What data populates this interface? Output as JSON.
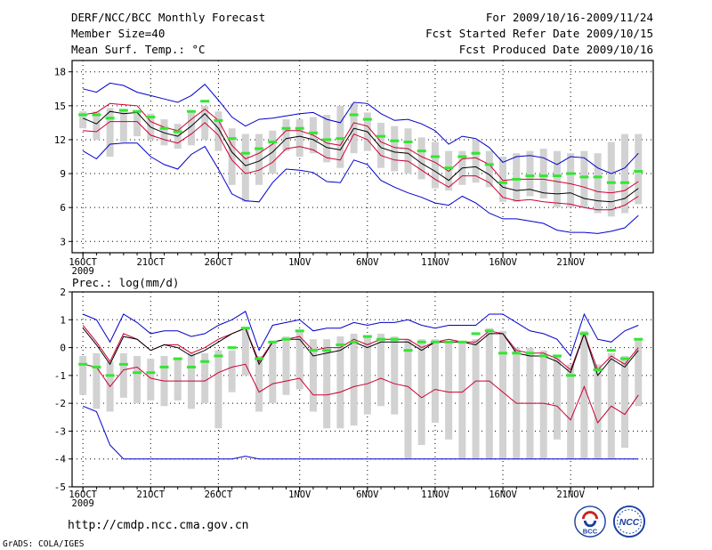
{
  "header": {
    "title": "DERF/NCC/BCC Monthly Forecast",
    "member_size": "Member Size=40",
    "variable_top": "Mean Surf. Temp.: °C",
    "period": "For 2009/10/16-2009/11/24",
    "fcst_started": "Fcst Started Refer Date 2009/10/15",
    "fcst_produced": "Fcst Produced Date 2009/10/16"
  },
  "footer": {
    "url": "http://cmdp.ncc.cma.gov.cn",
    "grads": "GrADS: COLA/IGES",
    "logo_left_text": "BCC",
    "logo_right_text": "NCC"
  },
  "colors": {
    "blue": "#0000cc",
    "red": "#cc0033",
    "black": "#000000",
    "green": "#33e633",
    "gray": "#d2d2d2"
  },
  "chart_data": [
    {
      "type": "line",
      "title": "Mean Surf. Temp.: °C",
      "x_tick_labels": [
        "16OCT",
        "21OCT",
        "26OCT",
        "1NOV",
        "6NOV",
        "11NOV",
        "16NOV",
        "21NOV"
      ],
      "x_tick_days": [
        1,
        6,
        11,
        17,
        22,
        27,
        32,
        37
      ],
      "year_label": "2009",
      "ylim": [
        2,
        19
      ],
      "yticks": [
        3,
        6,
        9,
        12,
        15,
        18
      ],
      "series": [
        {
          "name": "max",
          "color": "blue",
          "values": [
            16.5,
            16.2,
            17.0,
            16.8,
            16.2,
            15.9,
            15.6,
            15.3,
            15.9,
            16.9,
            15.5,
            14.0,
            13.2,
            13.8,
            13.9,
            14.1,
            14.3,
            14.4,
            13.8,
            13.5,
            15.3,
            15.2,
            14.3,
            13.7,
            13.8,
            13.4,
            12.8,
            11.6,
            12.3,
            12.1,
            11.3,
            10.0,
            10.5,
            10.6,
            10.4,
            9.8,
            10.5,
            10.4,
            9.5,
            9.0,
            9.5,
            10.8
          ]
        },
        {
          "name": "p75",
          "color": "red",
          "values": [
            14.2,
            14.4,
            15.2,
            15.1,
            15.0,
            13.6,
            13.1,
            12.8,
            13.8,
            14.7,
            13.7,
            11.5,
            10.3,
            10.8,
            11.6,
            12.8,
            12.8,
            12.4,
            11.7,
            11.5,
            13.5,
            13.2,
            11.8,
            11.3,
            11.2,
            10.5,
            10.0,
            9.2,
            10.3,
            10.4,
            9.8,
            8.4,
            8.5,
            8.5,
            8.5,
            8.3,
            8.1,
            7.8,
            7.4,
            7.3,
            7.5,
            8.3
          ]
        },
        {
          "name": "mean",
          "color": "black",
          "values": [
            13.9,
            13.4,
            14.5,
            14.3,
            14.4,
            13.1,
            12.6,
            12.3,
            13.2,
            14.3,
            13.0,
            10.9,
            9.7,
            10.1,
            10.9,
            12.1,
            12.3,
            12.0,
            11.3,
            11.1,
            13.0,
            12.7,
            11.3,
            10.9,
            10.8,
            9.9,
            9.2,
            8.4,
            9.5,
            9.6,
            8.9,
            7.8,
            7.5,
            7.6,
            7.3,
            7.2,
            7.3,
            6.8,
            6.6,
            6.5,
            6.8,
            7.7
          ]
        },
        {
          "name": "p25",
          "color": "red",
          "values": [
            12.8,
            12.7,
            13.6,
            13.6,
            13.6,
            12.4,
            12.0,
            11.7,
            12.5,
            13.5,
            12.4,
            10.2,
            9.0,
            9.3,
            10.0,
            11.2,
            11.4,
            11.1,
            10.4,
            10.2,
            12.5,
            12.0,
            10.6,
            10.2,
            10.1,
            9.3,
            8.5,
            7.8,
            8.8,
            8.8,
            8.2,
            6.9,
            6.6,
            6.7,
            6.5,
            6.4,
            6.3,
            6.0,
            5.8,
            5.8,
            6.2,
            7.0
          ]
        },
        {
          "name": "min",
          "color": "blue",
          "values": [
            11.0,
            10.3,
            11.6,
            11.7,
            11.7,
            10.5,
            9.8,
            9.4,
            10.7,
            11.4,
            9.4,
            7.2,
            6.6,
            6.5,
            8.2,
            9.4,
            9.3,
            9.1,
            8.3,
            8.2,
            10.2,
            9.8,
            8.4,
            7.8,
            7.3,
            6.9,
            6.4,
            6.2,
            7.0,
            6.4,
            5.5,
            5.0,
            5.0,
            4.8,
            4.6,
            4.0,
            3.8,
            3.8,
            3.7,
            3.9,
            4.2,
            5.3
          ]
        },
        {
          "name": "bar_top",
          "color": "gray",
          "values": [
            14.5,
            14.5,
            14.8,
            14.7,
            14.6,
            14.3,
            13.8,
            13.4,
            14.5,
            15.0,
            14.5,
            13.0,
            12.5,
            12.5,
            12.8,
            13.8,
            13.8,
            14.0,
            14.2,
            15.0,
            15.2,
            14.4,
            13.5,
            13.2,
            13.0,
            12.2,
            11.8,
            11.0,
            11.0,
            12.0,
            11.0,
            10.5,
            10.8,
            11.0,
            11.2,
            11.0,
            10.8,
            11.0,
            10.8,
            11.8,
            12.5,
            12.5
          ]
        },
        {
          "name": "bar_bottom",
          "color": "gray",
          "values": [
            13.0,
            12.0,
            10.5,
            11.8,
            12.3,
            12.0,
            11.5,
            11.2,
            11.5,
            12.0,
            11.0,
            8.0,
            6.5,
            8.0,
            9.0,
            11.0,
            10.5,
            10.8,
            10.0,
            9.5,
            10.8,
            11.0,
            9.5,
            9.2,
            9.0,
            8.5,
            7.7,
            7.5,
            8.0,
            8.2,
            7.8,
            6.5,
            6.5,
            7.0,
            6.8,
            6.0,
            6.0,
            6.0,
            5.5,
            5.2,
            5.5,
            6.3
          ]
        },
        {
          "name": "median",
          "color": "green",
          "values": [
            14.2,
            14.2,
            13.9,
            14.6,
            14.5,
            14.0,
            13.0,
            12.7,
            14.5,
            15.4,
            13.7,
            12.1,
            10.8,
            11.2,
            11.8,
            13.0,
            13.0,
            12.6,
            12.0,
            12.1,
            14.2,
            13.8,
            12.3,
            11.9,
            11.8,
            11.0,
            10.5,
            9.5,
            10.5,
            10.8,
            9.8,
            8.2,
            8.5,
            8.8,
            8.8,
            8.8,
            9.0,
            8.7,
            8.7,
            8.2,
            8.2,
            9.2
          ]
        }
      ]
    },
    {
      "type": "line",
      "title": "Prec.: log(mm/d)",
      "x_tick_labels": [
        "16OCT",
        "21OCT",
        "26OCT",
        "1NOV",
        "6NOV",
        "11NOV",
        "16NOV",
        "21NOV"
      ],
      "x_tick_days": [
        1,
        6,
        11,
        17,
        22,
        27,
        32,
        37
      ],
      "year_label": "2009",
      "ylim": [
        -5,
        2
      ],
      "yticks": [
        -5,
        -4,
        -3,
        -2,
        -1,
        0,
        1,
        2
      ],
      "series": [
        {
          "name": "max",
          "color": "blue",
          "values": [
            1.2,
            1.0,
            0.2,
            1.2,
            0.9,
            0.5,
            0.6,
            0.6,
            0.4,
            0.5,
            0.8,
            1.0,
            1.3,
            -0.1,
            0.8,
            0.9,
            1.0,
            0.6,
            0.7,
            0.7,
            0.9,
            0.8,
            0.9,
            0.9,
            1.0,
            0.8,
            0.7,
            0.8,
            0.8,
            0.8,
            1.2,
            1.2,
            0.9,
            0.6,
            0.5,
            0.3,
            -0.3,
            1.2,
            0.3,
            0.2,
            0.6,
            0.8
          ]
        },
        {
          "name": "p75",
          "color": "red",
          "values": [
            0.8,
            0.2,
            -0.5,
            0.5,
            0.3,
            -0.1,
            0.1,
            0.1,
            -0.2,
            0.0,
            0.3,
            0.5,
            0.7,
            -0.5,
            0.2,
            0.3,
            0.4,
            -0.1,
            0.0,
            0.0,
            0.3,
            0.1,
            0.3,
            0.3,
            0.3,
            0.0,
            0.2,
            0.3,
            0.2,
            0.2,
            0.6,
            0.5,
            -0.1,
            -0.2,
            -0.2,
            -0.4,
            -0.8,
            0.5,
            -0.8,
            -0.3,
            -0.6,
            0.0
          ]
        },
        {
          "name": "mean",
          "color": "black",
          "values": [
            0.7,
            0.1,
            -0.6,
            0.4,
            0.3,
            -0.1,
            0.1,
            0.0,
            -0.3,
            -0.1,
            0.2,
            0.5,
            0.7,
            -0.6,
            0.2,
            0.3,
            0.3,
            -0.3,
            -0.2,
            -0.1,
            0.2,
            0.0,
            0.2,
            0.2,
            0.2,
            -0.1,
            0.2,
            0.2,
            0.2,
            0.1,
            0.5,
            0.5,
            -0.2,
            -0.3,
            -0.3,
            -0.5,
            -0.9,
            0.5,
            -1.0,
            -0.4,
            -0.7,
            -0.1
          ]
        },
        {
          "name": "p25",
          "color": "red",
          "values": [
            -0.6,
            -0.7,
            -1.4,
            -0.8,
            -0.7,
            -1.1,
            -1.2,
            -1.2,
            -1.2,
            -1.2,
            -0.9,
            -0.7,
            -0.6,
            -1.6,
            -1.3,
            -1.2,
            -1.1,
            -1.7,
            -1.7,
            -1.6,
            -1.4,
            -1.3,
            -1.1,
            -1.3,
            -1.4,
            -1.8,
            -1.5,
            -1.6,
            -1.6,
            -1.2,
            -1.2,
            -1.6,
            -2.0,
            -2.0,
            -2.0,
            -2.1,
            -2.6,
            -1.4,
            -2.7,
            -2.1,
            -2.4,
            -1.7
          ]
        },
        {
          "name": "min",
          "color": "blue",
          "values": [
            -2.1,
            -2.3,
            -3.5,
            -4.0,
            -4.0,
            -4.0,
            -4.0,
            -4.0,
            -4.0,
            -4.0,
            -4.0,
            -4.0,
            -3.9,
            -4.0,
            -4.0,
            -4.0,
            -4.0,
            -4.0,
            -4.0,
            -4.0,
            -4.0,
            -4.0,
            -4.0,
            -4.0,
            -4.0,
            -4.0,
            -4.0,
            -4.0,
            -4.0,
            -4.0,
            -4.0,
            -4.0,
            -4.0,
            -4.0,
            -4.0,
            -4.0,
            -4.0,
            -4.0,
            -4.0,
            -4.0,
            -4.0,
            -4.0
          ]
        },
        {
          "name": "bar_top",
          "color": "gray",
          "values": [
            -0.3,
            -0.2,
            -0.5,
            -0.2,
            -0.3,
            -0.4,
            -0.3,
            -0.4,
            -0.2,
            -0.2,
            -0.1,
            -0.1,
            0.7,
            -0.3,
            0.2,
            0.4,
            0.6,
            0.3,
            0.3,
            0.4,
            0.5,
            0.4,
            0.5,
            0.4,
            0.3,
            0.3,
            0.3,
            0.2,
            0.2,
            0.3,
            0.7,
            0.6,
            0.0,
            0.0,
            -0.1,
            -0.3,
            -0.6,
            0.6,
            -0.6,
            -0.2,
            -0.3,
            0.3
          ]
        },
        {
          "name": "bar_bottom",
          "color": "gray",
          "values": [
            -1.7,
            -2.2,
            -2.3,
            -1.8,
            -2.0,
            -1.9,
            -2.1,
            -1.9,
            -2.2,
            -2.0,
            -2.9,
            -1.6,
            -1.0,
            -2.3,
            -2.0,
            -1.7,
            -1.5,
            -2.3,
            -2.9,
            -2.9,
            -2.8,
            -2.4,
            -2.1,
            -2.4,
            -4.0,
            -3.5,
            -2.7,
            -3.3,
            -4.0,
            -4.0,
            -4.0,
            -4.0,
            -4.0,
            -4.0,
            -4.0,
            -3.3,
            -4.0,
            -4.0,
            -4.0,
            -4.0,
            -3.6,
            -2.1
          ]
        },
        {
          "name": "median",
          "color": "green",
          "values": [
            -0.6,
            -0.7,
            -1.0,
            -0.6,
            -0.9,
            -0.9,
            -0.7,
            -0.4,
            -0.7,
            -0.5,
            -0.3,
            0.0,
            0.7,
            -0.4,
            0.2,
            0.3,
            0.6,
            -0.1,
            -0.1,
            0.1,
            0.2,
            0.4,
            0.3,
            0.3,
            -0.1,
            0.2,
            0.2,
            0.2,
            0.2,
            0.5,
            0.6,
            -0.2,
            -0.2,
            -0.2,
            -0.3,
            -0.3,
            -1.0,
            0.5,
            -0.8,
            -0.1,
            -0.4,
            0.3
          ]
        }
      ]
    }
  ]
}
